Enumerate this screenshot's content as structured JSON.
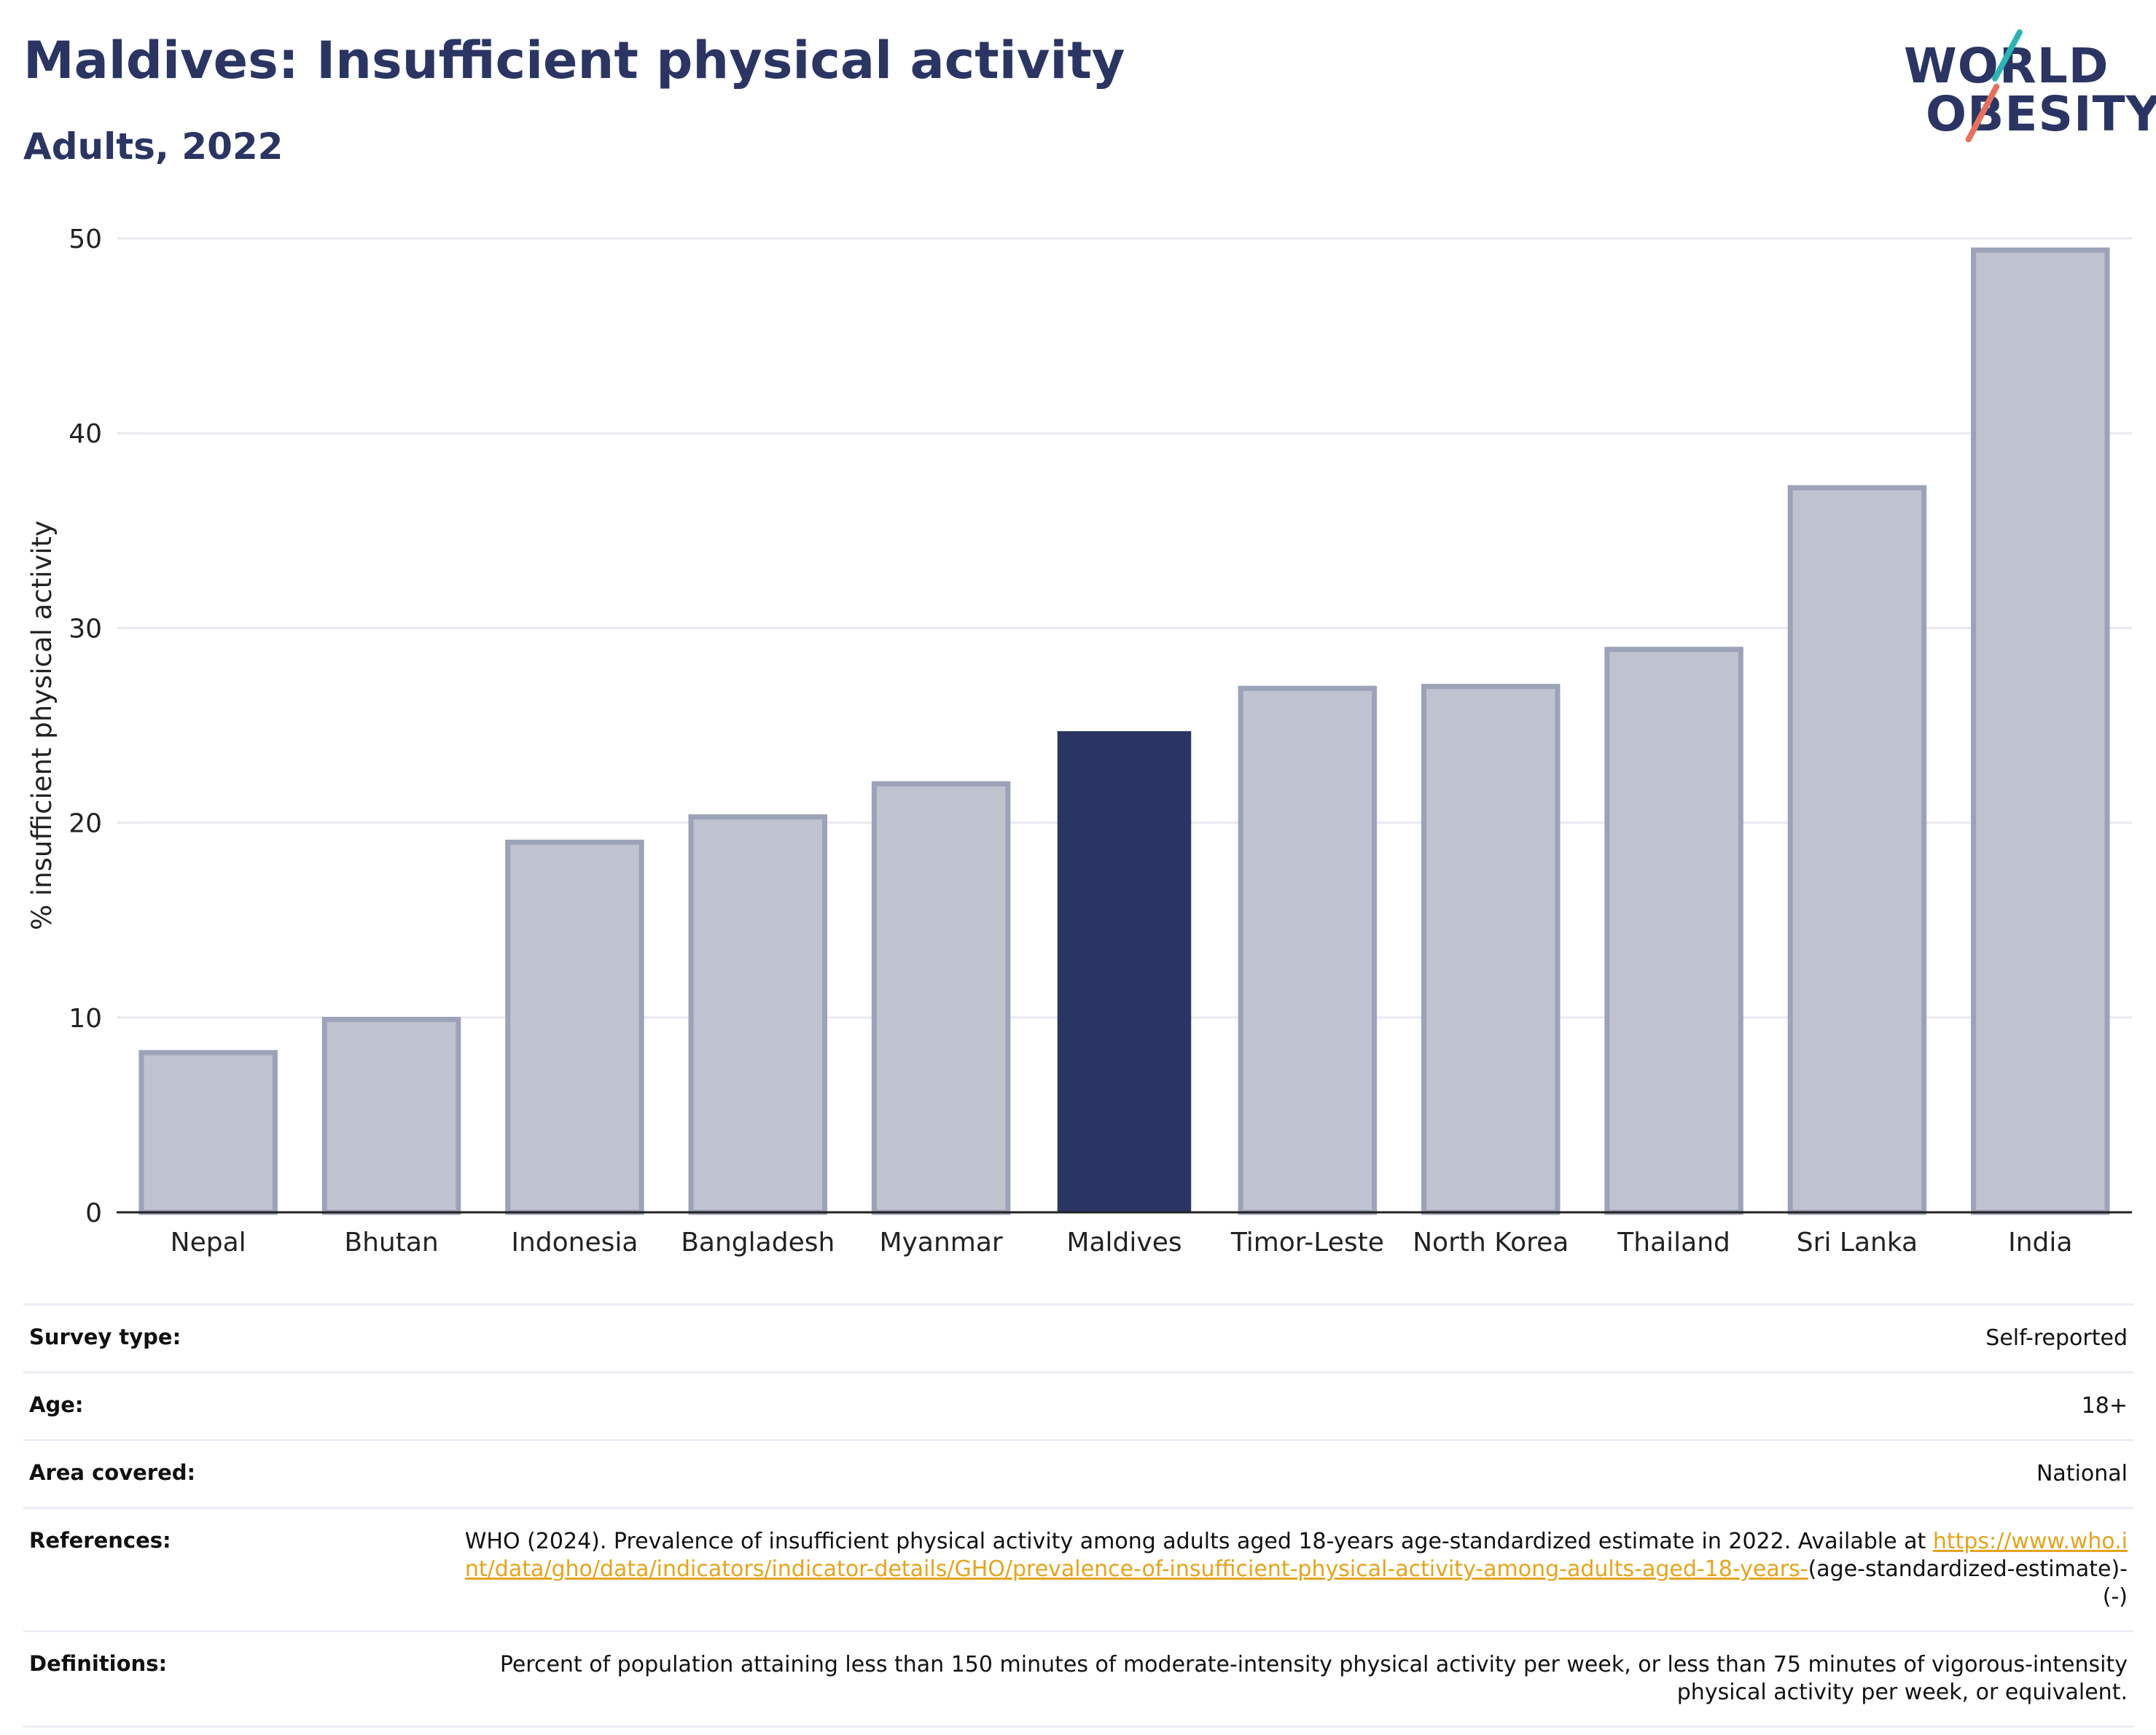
{
  "header": {
    "title": "Maldives: Insufficient physical activity",
    "subtitle": "Adults, 2022"
  },
  "logo": {
    "line1": "WORLD",
    "line2": "OBESITY",
    "colors": {
      "text": "#2a3563",
      "slash_top": "#2ab5b5",
      "slash_bottom": "#e8705a"
    }
  },
  "chart_data": {
    "type": "bar",
    "title": "Maldives: Insufficient physical activity",
    "subtitle": "Adults, 2022",
    "xlabel": "",
    "ylabel": "% insufficient physical activity",
    "ylim": [
      0,
      50
    ],
    "yticks": [
      0,
      10,
      20,
      30,
      40,
      50
    ],
    "grid": true,
    "highlight": "Maldives",
    "colors": {
      "default": "#bfc3d0",
      "default_edge": "#9ca2b8",
      "highlight": "#2a3563"
    },
    "categories": [
      "Nepal",
      "Bhutan",
      "Indonesia",
      "Bangladesh",
      "Myanmar",
      "Maldives",
      "Timor-Leste",
      "North Korea",
      "Thailand",
      "Sri Lanka",
      "India"
    ],
    "values": [
      8.2,
      9.9,
      19.0,
      20.3,
      22.0,
      24.7,
      26.9,
      27.0,
      28.9,
      37.2,
      49.4
    ]
  },
  "meta": {
    "survey_type": {
      "label": "Survey type:",
      "value": "Self-reported"
    },
    "age": {
      "label": "Age:",
      "value": "18+"
    },
    "area": {
      "label": "Area covered:",
      "value": "National"
    },
    "references": {
      "label": "References:",
      "text": "WHO (2024). Prevalence of insufficient physical activity among adults aged 18-years age-standardized estimate in 2022. Available at",
      "link": "https://www.who.int/data/gho/data/indicators/indicator-details/GHO/prevalence-of-insufficient-physical-activity-among-adults-aged-18-years-",
      "suffix": "(age-standardized-estimate)-(-)"
    },
    "definitions": {
      "label": "Definitions:",
      "value": "Percent of population attaining less than 150 minutes of moderate-intensity physical activity per week, or less than 75 minutes of vigorous-intensity physical activity per week, or equivalent."
    }
  }
}
